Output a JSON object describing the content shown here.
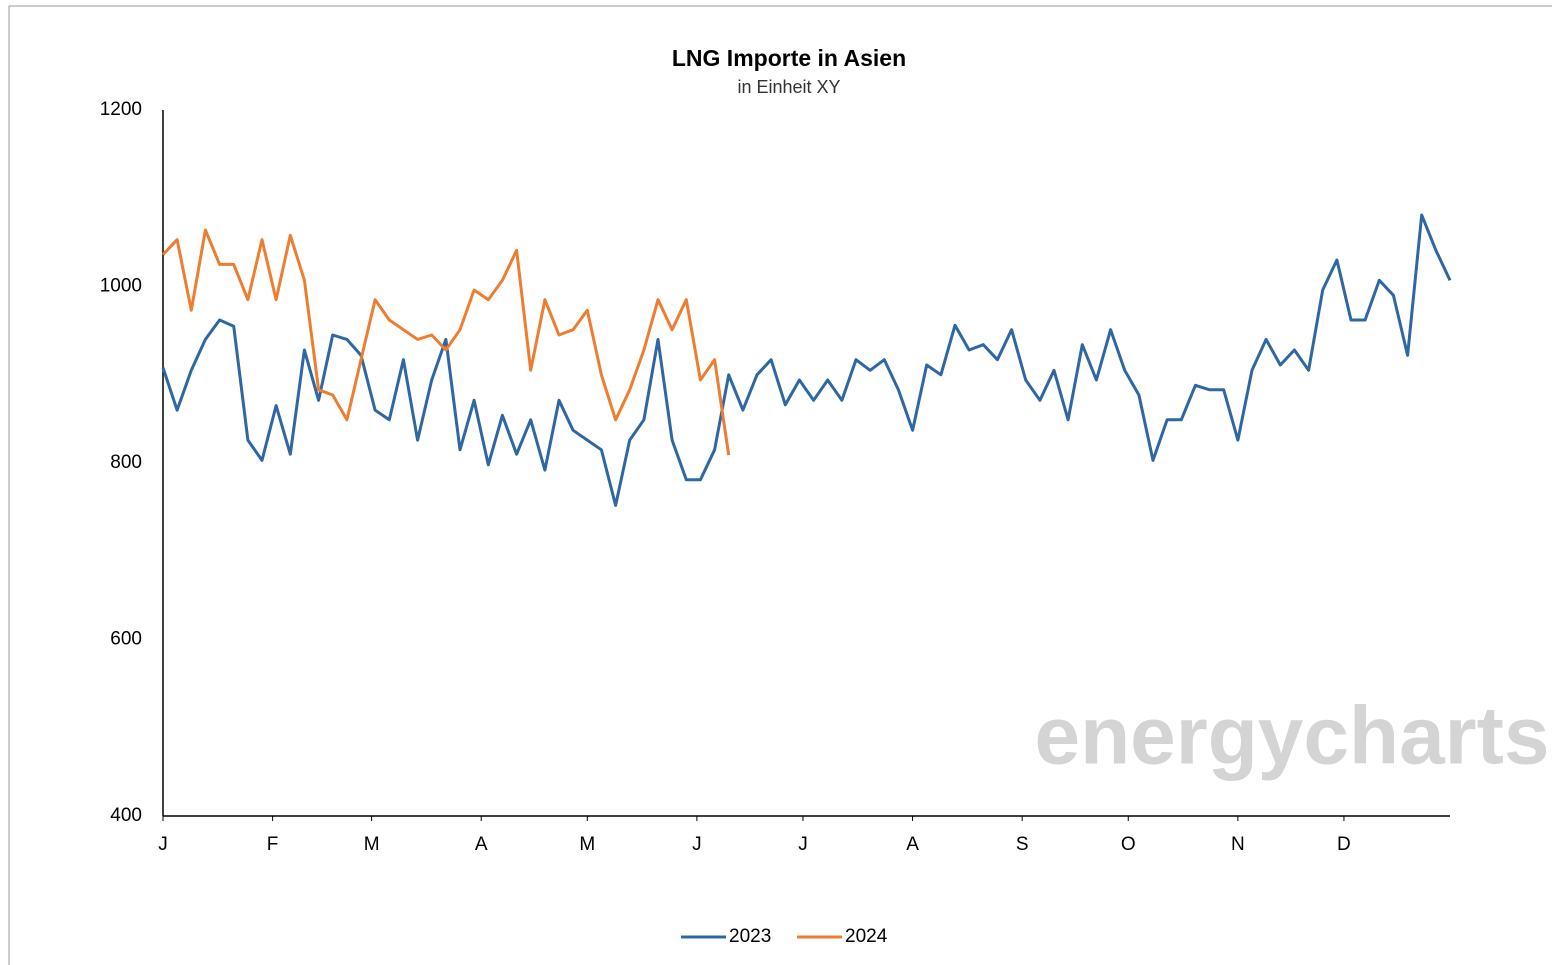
{
  "chart_data": {
    "type": "line",
    "title": "LNG Importe in  Asien",
    "subtitle": "in Einheit XY",
    "watermark": "energycharts",
    "x": [
      0,
      4,
      8,
      12,
      16,
      20,
      24,
      28,
      32,
      36,
      40,
      44,
      48,
      52,
      56,
      60,
      64,
      68,
      72,
      76,
      80,
      84,
      88,
      92,
      96,
      100,
      104,
      108,
      112,
      116,
      120,
      124,
      128,
      132,
      136,
      140,
      144,
      148,
      152,
      156,
      160,
      164,
      168,
      172,
      176,
      180,
      184,
      188,
      192,
      196,
      200,
      204,
      208,
      212,
      216,
      220,
      224,
      228,
      232,
      236,
      240,
      244,
      248,
      252,
      256,
      260,
      264,
      268,
      272,
      276,
      280,
      284,
      288,
      292,
      296,
      300,
      304,
      308,
      312,
      316,
      320,
      324,
      328,
      332,
      336,
      340,
      344,
      348,
      352,
      356,
      360,
      364
    ],
    "xlim": [
      0,
      364
    ],
    "xticks": [
      {
        "value": 0,
        "label": "J"
      },
      {
        "value": 31,
        "label": "F"
      },
      {
        "value": 59,
        "label": "M"
      },
      {
        "value": 90,
        "label": "A"
      },
      {
        "value": 120,
        "label": "M"
      },
      {
        "value": 151,
        "label": "J"
      },
      {
        "value": 181,
        "label": "J"
      },
      {
        "value": 212,
        "label": "A"
      },
      {
        "value": 243,
        "label": "S"
      },
      {
        "value": 273,
        "label": "O"
      },
      {
        "value": 304,
        "label": "N"
      },
      {
        "value": 334,
        "label": "D"
      }
    ],
    "ylim": [
      400,
      1200
    ],
    "yticks": [
      400,
      600,
      800,
      1000,
      1200
    ],
    "grid": false,
    "legend": "bottom",
    "series": [
      {
        "name": "2023",
        "color": "#2e67a4",
        "values": [
          908,
          860,
          905,
          940,
          962,
          955,
          826,
          803,
          865,
          810,
          928,
          871,
          945,
          940,
          922,
          860,
          849,
          917,
          826,
          894,
          940,
          815,
          871,
          798,
          854,
          810,
          849,
          792,
          871,
          837,
          826,
          815,
          752,
          826,
          849,
          940,
          826,
          781,
          781,
          815,
          900,
          860,
          900,
          917,
          866,
          894,
          871,
          894,
          871,
          917,
          905,
          917,
          883,
          837,
          911,
          900,
          956,
          928,
          934,
          917,
          951,
          894,
          871,
          905,
          849,
          934,
          894,
          951,
          905,
          877,
          803,
          849,
          849,
          888,
          883,
          883,
          826,
          905,
          940,
          911,
          928,
          905,
          996,
          1030,
          962,
          962,
          1007,
          990,
          922,
          1081,
          1041,
          1007
        ]
      },
      {
        "name": "2024",
        "color": "#ed7d31",
        "values": [
          1036,
          1053,
          973,
          1064,
          1025,
          1025,
          985,
          1053,
          985,
          1058,
          1007,
          883,
          877,
          849,
          917,
          985,
          962,
          951,
          940,
          945,
          928,
          951,
          996,
          985,
          1007,
          1041,
          905,
          985,
          945,
          951,
          973,
          900,
          849,
          883,
          928,
          985,
          951,
          985,
          894,
          917,
          809,
          null,
          null,
          null,
          null,
          null,
          null,
          null,
          null,
          null,
          null,
          null,
          null,
          null,
          null,
          null,
          null,
          null,
          null,
          null,
          null,
          null,
          null,
          null,
          null,
          null,
          null,
          null,
          null,
          null,
          null,
          null,
          null,
          null,
          null,
          null,
          null,
          null,
          null,
          null,
          null,
          null,
          null,
          null,
          null,
          null,
          null,
          null,
          null,
          null,
          null,
          null
        ]
      }
    ]
  }
}
